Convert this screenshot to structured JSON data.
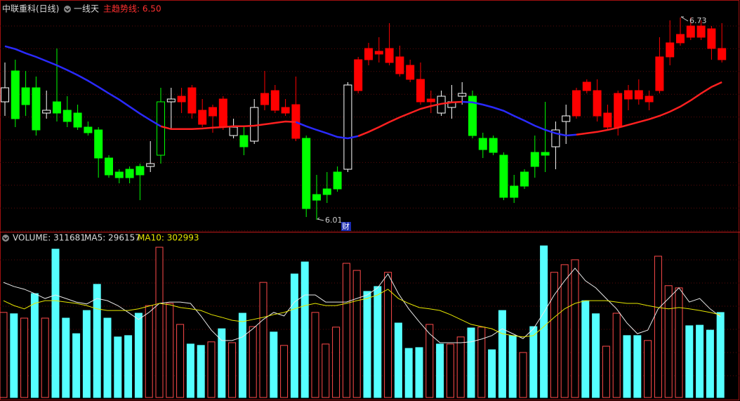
{
  "chart_data": [
    {
      "type": "candlestick",
      "title": "中联重科(日线)",
      "indicator": "一线天",
      "trend_label": "主趋势线: 6.50",
      "grid": true,
      "ylim": [
        5.9675,
        6.7925
      ],
      "open": [
        6.43,
        6.54,
        6.48,
        6.48,
        6.39,
        6.43,
        6.4,
        6.39,
        6.34,
        6.33,
        6.23,
        6.18,
        6.19,
        6.2,
        6.2,
        6.24,
        6.43,
        6.43,
        6.39,
        6.35,
        6.38,
        6.34,
        6.31,
        6.31,
        6.29,
        6.42,
        6.4,
        6.39,
        6.3,
        6.3,
        6.1,
        6.12,
        6.18,
        6.19,
        6.47,
        6.58,
        6.6,
        6.57,
        6.53,
        6.51,
        6.43,
        6.43,
        6.39,
        6.41,
        6.45,
        6.45,
        6.3,
        6.3,
        6.24,
        6.13,
        6.18,
        6.25,
        6.25,
        6.27,
        6.36,
        6.38,
        6.47,
        6.38,
        6.34,
        6.34,
        6.44,
        6.44,
        6.43,
        6.47,
        6.59,
        6.64,
        6.66,
        6.66,
        6.62,
        6.58
      ],
      "high": [
        6.57,
        6.58,
        6.54,
        6.52,
        6.47,
        6.62,
        6.45,
        6.42,
        6.36,
        6.34,
        6.24,
        6.19,
        6.2,
        6.21,
        6.29,
        6.48,
        6.48,
        6.48,
        6.49,
        6.44,
        6.42,
        6.45,
        6.37,
        6.34,
        6.44,
        6.54,
        6.49,
        6.44,
        6.52,
        6.31,
        6.17,
        6.18,
        6.2,
        6.5,
        6.59,
        6.64,
        6.66,
        6.71,
        6.63,
        6.58,
        6.57,
        6.47,
        6.47,
        6.49,
        6.5,
        6.47,
        6.32,
        6.31,
        6.25,
        6.17,
        6.19,
        6.31,
        6.43,
        6.36,
        6.42,
        6.48,
        6.51,
        6.51,
        6.42,
        6.47,
        6.49,
        6.51,
        6.47,
        6.66,
        6.72,
        6.73,
        6.73,
        6.72,
        6.7,
        6.71
      ],
      "low": [
        6.38,
        6.34,
        6.38,
        6.31,
        6.37,
        6.36,
        6.34,
        6.33,
        6.31,
        6.16,
        6.16,
        6.14,
        6.14,
        6.08,
        6.18,
        6.21,
        6.33,
        6.39,
        6.37,
        6.34,
        6.32,
        6.33,
        6.3,
        6.24,
        6.28,
        6.4,
        6.39,
        6.38,
        6.29,
        6.02,
        6.01,
        6.07,
        6.11,
        6.18,
        6.46,
        6.56,
        6.57,
        6.56,
        6.52,
        6.5,
        6.42,
        6.39,
        6.38,
        6.37,
        6.42,
        6.3,
        6.23,
        6.24,
        6.08,
        6.07,
        6.12,
        6.16,
        6.18,
        6.19,
        6.28,
        6.37,
        6.46,
        6.36,
        6.33,
        6.31,
        6.4,
        6.42,
        6.4,
        6.46,
        6.56,
        6.63,
        6.65,
        6.65,
        6.58,
        6.57
      ],
      "close": [
        6.48,
        6.37,
        6.42,
        6.33,
        6.4,
        6.39,
        6.36,
        6.34,
        6.32,
        6.23,
        6.17,
        6.16,
        6.16,
        6.17,
        6.21,
        6.43,
        6.44,
        6.45,
        6.48,
        6.4,
        6.41,
        6.44,
        6.34,
        6.27,
        6.41,
        6.46,
        6.47,
        6.41,
        6.42,
        6.05,
        6.08,
        6.1,
        6.12,
        6.49,
        6.58,
        6.62,
        6.61,
        6.62,
        6.59,
        6.56,
        6.51,
        6.44,
        6.45,
        6.43,
        6.46,
        6.31,
        6.26,
        6.25,
        6.09,
        6.09,
        6.13,
        6.2,
        6.24,
        6.33,
        6.38,
        6.47,
        6.5,
        6.47,
        6.39,
        6.46,
        6.47,
        6.47,
        6.45,
        6.59,
        6.64,
        6.67,
        6.7,
        6.7,
        6.69,
        6.62
      ],
      "colors": [
        "white",
        "lime",
        "lime",
        "lime",
        "white",
        "lime",
        "lime",
        "lime",
        "lime",
        "lime",
        "lime",
        "lime",
        "lime",
        "lime",
        "white",
        "lime",
        "white",
        "red",
        "red",
        "red",
        "red",
        "red",
        "white",
        "lime",
        "white",
        "red",
        "red",
        "red",
        "red",
        "lime",
        "lime",
        "lime",
        "lime",
        "white",
        "red",
        "red",
        "red",
        "red",
        "red",
        "red",
        "red",
        "red",
        "white",
        "white",
        "white",
        "lime",
        "lime",
        "lime",
        "lime",
        "lime",
        "lime",
        "lime",
        "lime",
        "white",
        "white",
        "red",
        "red",
        "red",
        "red",
        "red",
        "red",
        "red",
        "red",
        "red",
        "red",
        "red",
        "red",
        "red",
        "red",
        "red"
      ],
      "trend": {
        "values": [
          6.628,
          6.618,
          6.603,
          6.59,
          6.575,
          6.56,
          6.543,
          6.525,
          6.505,
          6.483,
          6.46,
          6.438,
          6.413,
          6.388,
          6.365,
          6.343,
          6.333,
          6.333,
          6.333,
          6.335,
          6.338,
          6.34,
          6.343,
          6.343,
          6.345,
          6.35,
          6.355,
          6.36,
          6.358,
          6.343,
          6.33,
          6.318,
          6.305,
          6.3,
          6.308,
          6.323,
          6.34,
          6.358,
          6.375,
          6.39,
          6.405,
          6.415,
          6.423,
          6.428,
          6.43,
          6.428,
          6.42,
          6.41,
          6.398,
          6.38,
          6.363,
          6.345,
          6.33,
          6.318,
          6.31,
          6.313,
          6.318,
          6.323,
          6.33,
          6.338,
          6.348,
          6.358,
          6.368,
          6.38,
          6.395,
          6.413,
          6.435,
          6.46,
          6.483,
          6.5
        ],
        "colors": [
          "#2a2aff",
          "#2a2aff",
          "#2a2aff",
          "#2a2aff",
          "#2a2aff",
          "#2a2aff",
          "#2a2aff",
          "#2a2aff",
          "#2a2aff",
          "#2a2aff",
          "#2a2aff",
          "#2a2aff",
          "#2a2aff",
          "#2a2aff",
          "#2a2aff",
          "#2a2aff",
          "#ff2020",
          "#ff2020",
          "#ff2020",
          "#ff2020",
          "#ff2020",
          "#ff2020",
          "#ff2020",
          "#ff2020",
          "#ff2020",
          "#ff2020",
          "#ff2020",
          "#ff2020",
          "#ff2020",
          "#2a2aff",
          "#2a2aff",
          "#2a2aff",
          "#2a2aff",
          "#2a2aff",
          "#2a2aff",
          "#ff2020",
          "#ff2020",
          "#ff2020",
          "#ff2020",
          "#ff2020",
          "#ff2020",
          "#ff2020",
          "#ff2020",
          "#ff2020",
          "#ff2020",
          "#2a2aff",
          "#2a2aff",
          "#2a2aff",
          "#2a2aff",
          "#2a2aff",
          "#2a2aff",
          "#2a2aff",
          "#2a2aff",
          "#2a2aff",
          "#2a2aff",
          "#2a2aff",
          "#ff2020",
          "#ff2020",
          "#ff2020",
          "#ff2020",
          "#ff2020",
          "#ff2020",
          "#ff2020",
          "#ff2020",
          "#ff2020",
          "#ff2020",
          "#ff2020",
          "#ff2020",
          "#ff2020",
          "#ff2020"
        ]
      },
      "annotations": [
        {
          "text": "6.73"
        },
        {
          "text": "6.01"
        },
        {
          "text": "财"
        }
      ]
    },
    {
      "type": "volume",
      "grid": true,
      "ylim": [
        0,
        600000
      ],
      "series": [
        {
          "name": "VOLUME: 311681",
          "values": [
            312000,
            307000,
            291000,
            381000,
            291000,
            544000,
            291000,
            234000,
            319000,
            415000,
            291000,
            222000,
            227000,
            309000,
            337000,
            551000,
            345000,
            268000,
            196000,
            191000,
            204000,
            252000,
            201000,
            309000,
            260000,
            422000,
            240000,
            191000,
            453000,
            497000,
            312000,
            196000,
            258000,
            492000,
            466000,
            389000,
            407000,
            459000,
            273000,
            180000,
            183000,
            268000,
            196000,
            196000,
            222000,
            255000,
            258000,
            175000,
            319000,
            227000,
            165000,
            260000,
            556000,
            459000,
            487000,
            505000,
            355000,
            307000,
            188000,
            309000,
            227000,
            227000,
            209000,
            518000,
            410000,
            402000,
            263000,
            265000,
            247000,
            311681
          ],
          "colors": [
            "#ff4a4a",
            "#55ffff",
            "#ff4a4a",
            "#55ffff",
            "#ff4a4a",
            "#55ffff",
            "#55ffff",
            "#55ffff",
            "#55ffff",
            "#55ffff",
            "#55ffff",
            "#55ffff",
            "#55ffff",
            "#55ffff",
            "#ff4a4a",
            "#ff4a4a",
            "#ff4a4a",
            "#ff4a4a",
            "#55ffff",
            "#55ffff",
            "#ff4a4a",
            "#55ffff",
            "#ff4a4a",
            "#55ffff",
            "#ff4a4a",
            "#ff4a4a",
            "#55ffff",
            "#ff4a4a",
            "#55ffff",
            "#55ffff",
            "#ff4a4a",
            "#ff4a4a",
            "#ff4a4a",
            "#ff4a4a",
            "#ff4a4a",
            "#55ffff",
            "#55ffff",
            "#ff4a4a",
            "#55ffff",
            "#55ffff",
            "#55ffff",
            "#ff4a4a",
            "#55ffff",
            "#ff4a4a",
            "#ff4a4a",
            "#55ffff",
            "#ff4a4a",
            "#55ffff",
            "#55ffff",
            "#55ffff",
            "#ff4a4a",
            "#55ffff",
            "#55ffff",
            "#ff4a4a",
            "#ff4a4a",
            "#ff4a4a",
            "#55ffff",
            "#55ffff",
            "#ff4a4a",
            "#ff4a4a",
            "#55ffff",
            "#55ffff",
            "#ff4a4a",
            "#ff4a4a",
            "#ff4a4a",
            "#ff4a4a",
            "#55ffff",
            "#55ffff",
            "#55ffff",
            "#55ffff"
          ]
        },
        {
          "name": "MA5: 296157",
          "color": "#e8e8e8",
          "values": [
            422000,
            407000,
            397000,
            381000,
            363000,
            376000,
            363000,
            350000,
            343000,
            363000,
            355000,
            337000,
            312000,
            286000,
            312000,
            345000,
            350000,
            350000,
            345000,
            299000,
            247000,
            209000,
            209000,
            222000,
            252000,
            286000,
            312000,
            299000,
            350000,
            376000,
            376000,
            350000,
            350000,
            350000,
            363000,
            376000,
            402000,
            453000,
            381000,
            325000,
            278000,
            234000,
            201000,
            201000,
            201000,
            204000,
            214000,
            227000,
            252000,
            234000,
            216000,
            252000,
            312000,
            376000,
            428000,
            474000,
            428000,
            402000,
            363000,
            325000,
            273000,
            234000,
            247000,
            325000,
            363000,
            402000,
            350000,
            363000,
            325000,
            296157
          ]
        },
        {
          "name": "MA10: 302993",
          "color": "#e6e600",
          "values": [
            355000,
            337000,
            325000,
            345000,
            355000,
            355000,
            350000,
            345000,
            337000,
            325000,
            319000,
            319000,
            319000,
            325000,
            335000,
            345000,
            340000,
            330000,
            325000,
            319000,
            304000,
            294000,
            283000,
            278000,
            286000,
            294000,
            304000,
            312000,
            325000,
            337000,
            345000,
            337000,
            337000,
            345000,
            355000,
            363000,
            376000,
            397000,
            363000,
            345000,
            330000,
            325000,
            319000,
            304000,
            286000,
            268000,
            260000,
            252000,
            234000,
            227000,
            222000,
            227000,
            260000,
            294000,
            325000,
            345000,
            355000,
            355000,
            355000,
            350000,
            345000,
            345000,
            337000,
            330000,
            325000,
            330000,
            325000,
            319000,
            312000,
            302993
          ]
        }
      ]
    }
  ]
}
